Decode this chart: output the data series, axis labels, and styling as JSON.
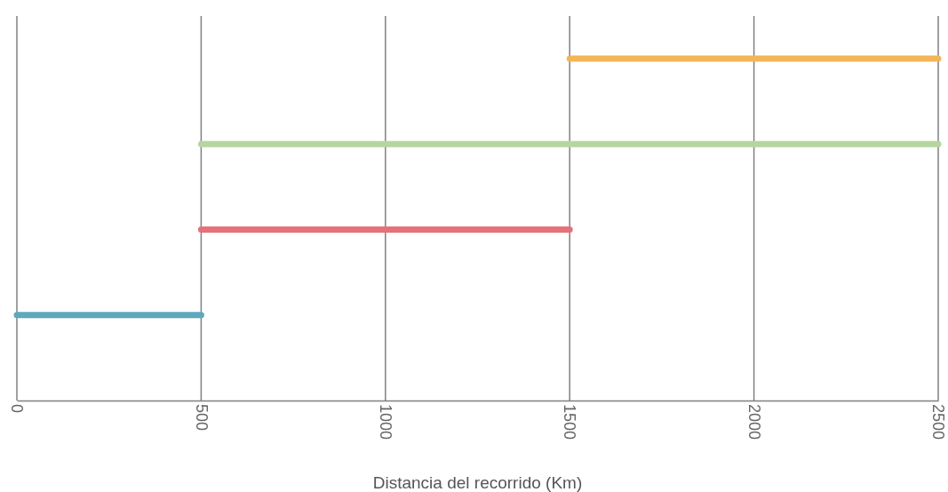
{
  "chart_data": {
    "type": "bar",
    "orientation": "horizontal",
    "xlabel": "Distancia del recorrido (Km)",
    "categories": [
      null,
      null,
      null,
      null
    ],
    "base": [
      1500,
      500,
      500,
      0
    ],
    "values": [
      1000,
      2000,
      1000,
      500
    ],
    "colors": [
      "#f4b55a",
      "#b5d6a0",
      "#e5717a",
      "#5ea8bd"
    ],
    "xlim": [
      0,
      2500
    ],
    "xticks": [
      0,
      500,
      1000,
      1500,
      2000,
      2500
    ],
    "grid": "x"
  }
}
